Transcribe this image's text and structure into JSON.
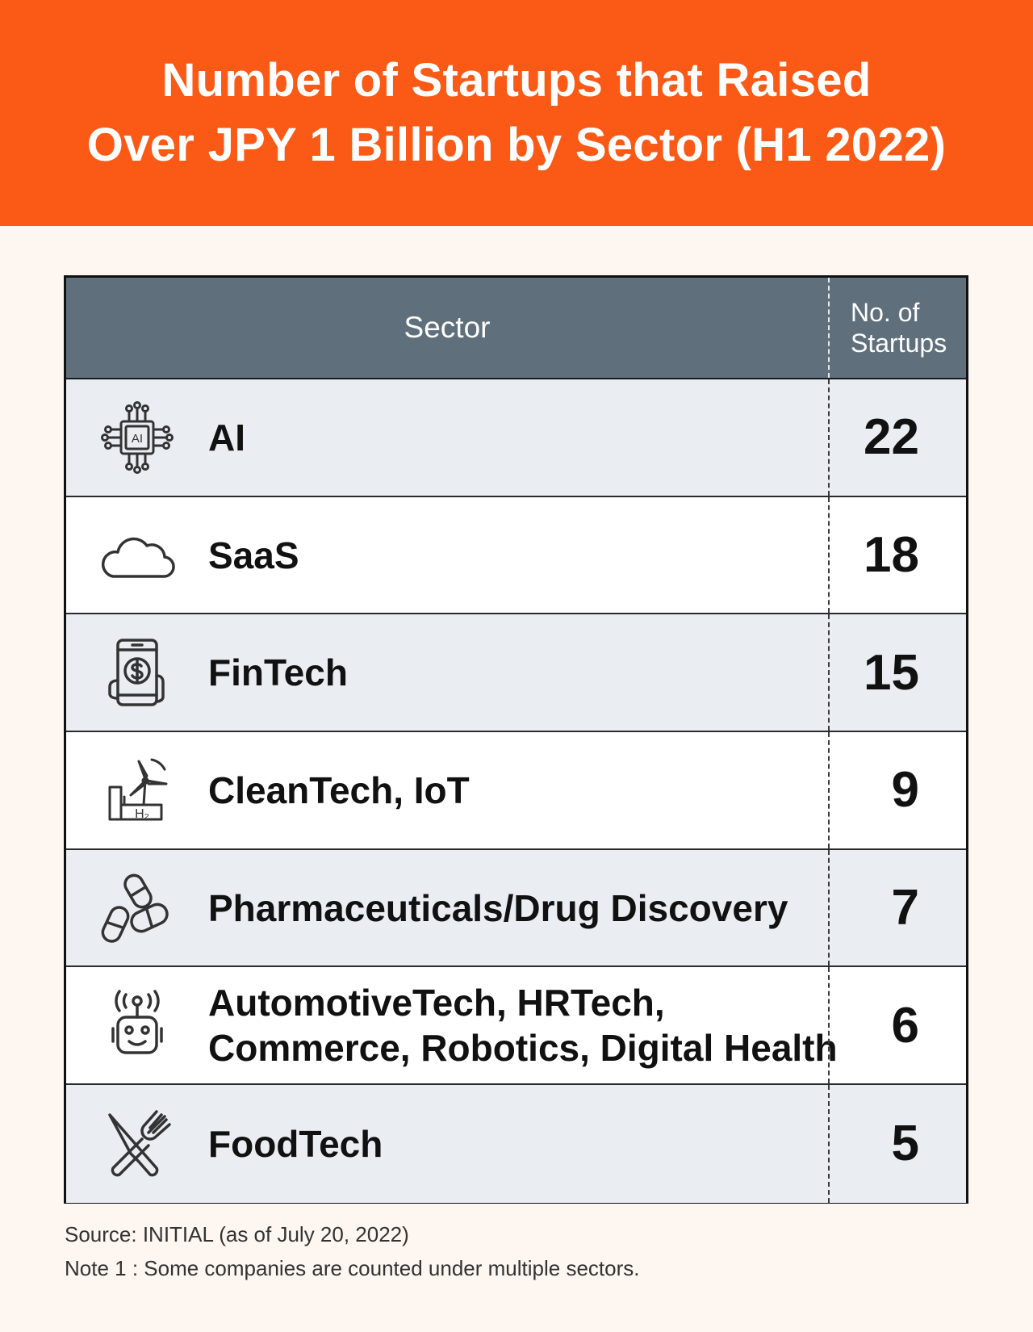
{
  "title": {
    "line1": "Number of Startups that Raised",
    "line2": "Over JPY 1 Billion by Sector (H1 2022)"
  },
  "table": {
    "headers": {
      "sector": "Sector",
      "count_line1": "No. of",
      "count_line2": "Startups"
    },
    "rows": [
      {
        "icon": "ai-chip-icon",
        "label_line1": "AI",
        "label_line2": "",
        "count": "22"
      },
      {
        "icon": "cloud-icon",
        "label_line1": "SaaS",
        "label_line2": "",
        "count": "18"
      },
      {
        "icon": "phone-dollar-icon",
        "label_line1": "FinTech",
        "label_line2": "",
        "count": "15"
      },
      {
        "icon": "wind-turbine-h2-icon",
        "label_line1": "CleanTech, IoT",
        "label_line2": "",
        "count": "9"
      },
      {
        "icon": "pills-icon",
        "label_line1": "Pharmaceuticals/Drug Discovery",
        "label_line2": "",
        "count": "7"
      },
      {
        "icon": "robot-icon",
        "label_line1": "AutomotiveTech, HRTech,",
        "label_line2": "Commerce, Robotics, Digital Health",
        "count": "6"
      },
      {
        "icon": "fork-knife-icon",
        "label_line1": "FoodTech",
        "label_line2": "",
        "count": "5"
      }
    ]
  },
  "footnotes": {
    "source": "Source: INITIAL (as of July 20, 2022)",
    "note": "Note 1 : Some companies are counted under multiple sectors."
  },
  "colors": {
    "banner": "#fb5a16",
    "header": "#5f6f7c",
    "row_shaded": "#eaedf2",
    "background": "#fdf6f1"
  }
}
